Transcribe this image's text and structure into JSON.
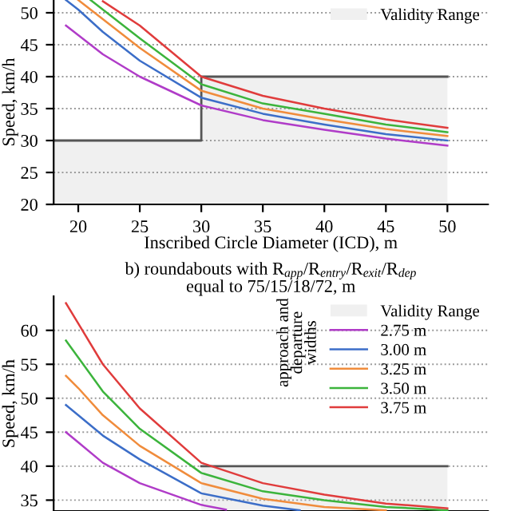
{
  "chart_data": [
    {
      "type": "line",
      "xlabel": "Inscribed Circle Diameter (ICD), m",
      "ylabel": "Speed, km/h",
      "xlim": [
        18,
        53.3
      ],
      "ylim": [
        20,
        52
      ],
      "xticks": [
        20,
        25,
        30,
        35,
        40,
        45,
        50
      ],
      "yticks": [
        20,
        25,
        30,
        35,
        40,
        45,
        50
      ],
      "grid": "y",
      "legend": "top right",
      "tick_labels": true,
      "series": [
        {
          "name": "Validity Range",
          "type": "area",
          "color": "#f0f0f0",
          "x": [
            18,
            30,
            30,
            50
          ],
          "values": [
            30,
            30,
            40,
            40
          ]
        },
        {
          "color": "#b03cc8",
          "x": [
            19,
            20,
            22,
            25,
            30,
            35,
            40,
            45,
            50
          ],
          "values": [
            48,
            46.5,
            43.5,
            40,
            35.5,
            33.2,
            31.7,
            30.3,
            29.2
          ]
        },
        {
          "color": "#3c6ec8",
          "x": [
            19,
            20,
            22,
            25,
            30,
            35,
            40,
            45,
            50
          ],
          "values": [
            52,
            50.5,
            47,
            42.5,
            36.7,
            34.2,
            32.5,
            31,
            30
          ]
        },
        {
          "color": "#f08c3c",
          "x": [
            20,
            22,
            25,
            30,
            35,
            40,
            45,
            50
          ],
          "values": [
            52,
            49,
            44.5,
            37.8,
            35,
            33.3,
            31.8,
            30.7
          ]
        },
        {
          "color": "#3cb43c",
          "x": [
            21,
            22,
            25,
            30,
            35,
            40,
            45,
            50
          ],
          "values": [
            52,
            50.5,
            46,
            38.8,
            35.8,
            34.2,
            32.5,
            31.3
          ]
        },
        {
          "color": "#e03c3c",
          "x": [
            22,
            25,
            30,
            35,
            40,
            45,
            50
          ],
          "values": [
            51.8,
            48,
            40,
            37,
            35,
            33.3,
            32
          ]
        }
      ]
    },
    {
      "type": "line",
      "title": "b) roundabouts with R$_{app}$/R$_{entry}$/R$_{exit}$/R$_{dep}$\nequal to 75/15/18/72, m",
      "ylabel": "Speed, km/h",
      "legend_title": "approach and\ndeparture\nwidths",
      "xlim": [
        18,
        53.3
      ],
      "ylim": [
        33.4,
        65
      ],
      "yticks": [
        35,
        40,
        45,
        50,
        55,
        60
      ],
      "grid": "y",
      "legend": "top right",
      "tick_labels": "y",
      "series": [
        {
          "name": "Validity Range",
          "type": "area",
          "color": "#f0f0f0",
          "x": [
            30,
            50
          ],
          "values": [
            40,
            40
          ]
        },
        {
          "name": "2.75 m",
          "color": "#b03cc8",
          "x": [
            19,
            20,
            22,
            25,
            30,
            32
          ],
          "values": [
            45,
            43.5,
            40.5,
            37.5,
            34.3,
            33.6
          ]
        },
        {
          "name": "3.00 m",
          "color": "#3c6ec8",
          "x": [
            19,
            20,
            22,
            25,
            30,
            35,
            38
          ],
          "values": [
            49,
            47.5,
            44.5,
            41,
            36,
            34.2,
            33.5
          ]
        },
        {
          "name": "3.25 m",
          "color": "#f08c3c",
          "x": [
            19,
            20,
            22,
            25,
            30,
            35,
            40,
            45
          ],
          "values": [
            53.3,
            51.5,
            47.5,
            43,
            37.5,
            35.2,
            34,
            33.5
          ]
        },
        {
          "name": "3.50 m",
          "color": "#3cb43c",
          "x": [
            19,
            20,
            22,
            25,
            30,
            35,
            40,
            45,
            50
          ],
          "values": [
            58.5,
            56,
            51,
            45.5,
            39,
            36.3,
            35,
            34,
            33.5
          ]
        },
        {
          "name": "3.75 m",
          "color": "#e03c3c",
          "x": [
            19,
            20,
            22,
            25,
            30,
            35,
            40,
            45,
            50
          ],
          "values": [
            64,
            61,
            55,
            48.5,
            40.5,
            37.5,
            35.8,
            34.5,
            33.8
          ]
        }
      ]
    }
  ]
}
